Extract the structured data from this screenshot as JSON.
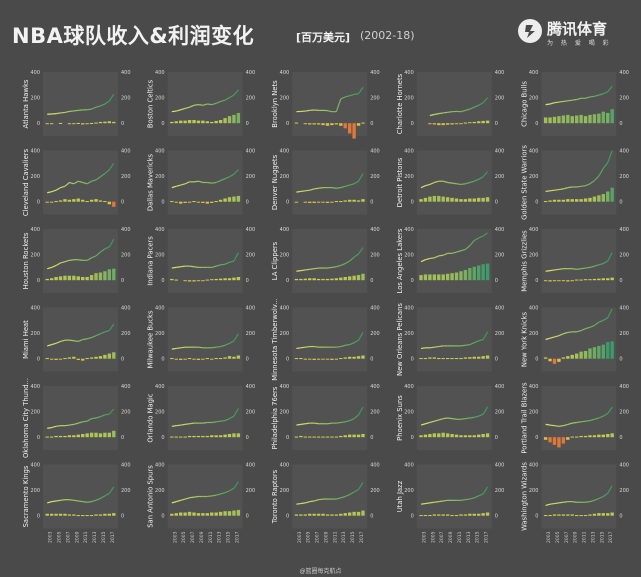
{
  "header": {
    "title": "NBA球队收入&利润变化",
    "unit": "[百万美元]",
    "years": "(2002-18)"
  },
  "logo": {
    "name": "腾讯体育",
    "sub": "为 热 爱 喝 彩"
  },
  "footer": {
    "watermark": "@篮圈每克航点"
  },
  "colors": {
    "background": "#4a4a4a",
    "panel": "#525252",
    "revenue_line_start": "#e8e86a",
    "revenue_line_end": "#3f9a5c",
    "profit_positive_low": "#d9d34f",
    "profit_positive_high": "#3d9a6a",
    "profit_negative": "#e0783a"
  },
  "chart_data": {
    "type": "line+bar small multiples",
    "y_axis": {
      "ylim": [
        -100,
        400
      ],
      "ticks": [
        0,
        200,
        400
      ]
    },
    "x_ticks": [
      "2003",
      "2005",
      "2007",
      "2009",
      "2011",
      "2013",
      "2015",
      "2017"
    ],
    "years": [
      2002,
      2003,
      2004,
      2005,
      2006,
      2007,
      2008,
      2009,
      2010,
      2011,
      2012,
      2013,
      2014,
      2015,
      2016,
      2017
    ],
    "teams": [
      {
        "name": "Atlanta Hawks",
        "revenue": [
          70,
          72,
          75,
          80,
          84,
          92,
          96,
          100,
          104,
          105,
          110,
          125,
          135,
          150,
          175,
          225
        ],
        "profit": [
          -3,
          -2,
          0,
          2,
          0,
          -3,
          -5,
          2,
          -10,
          -8,
          2,
          5,
          10,
          12,
          15,
          10
        ]
      },
      {
        "name": "Boston Celtics",
        "revenue": [
          90,
          95,
          105,
          115,
          125,
          140,
          145,
          140,
          150,
          145,
          155,
          170,
          180,
          200,
          220,
          260
        ],
        "profit": [
          10,
          15,
          20,
          20,
          25,
          25,
          20,
          20,
          15,
          10,
          18,
          25,
          40,
          55,
          65,
          80
        ]
      },
      {
        "name": "Brooklyn Nets",
        "revenue": [
          90,
          92,
          95,
          100,
          103,
          100,
          100,
          98,
          90,
          90,
          190,
          205,
          215,
          225,
          230,
          280
        ],
        "profit": [
          5,
          0,
          -5,
          -10,
          -10,
          -10,
          -15,
          -20,
          -15,
          -10,
          -20,
          -40,
          -80,
          -120,
          -20,
          5
        ]
      },
      {
        "name": "Charlotte Hornets",
        "revenue": [
          0,
          0,
          60,
          68,
          75,
          80,
          85,
          90,
          92,
          90,
          100,
          110,
          125,
          140,
          160,
          200
        ],
        "profit": [
          0,
          0,
          -5,
          -10,
          -15,
          -15,
          -12,
          -10,
          -8,
          -5,
          5,
          8,
          10,
          15,
          18,
          20
        ]
      },
      {
        "name": "Chicago Bulls",
        "revenue": [
          145,
          150,
          160,
          165,
          170,
          175,
          180,
          185,
          195,
          195,
          205,
          210,
          220,
          230,
          245,
          290
        ],
        "profit": [
          45,
          45,
          50,
          55,
          60,
          65,
          55,
          60,
          65,
          55,
          65,
          70,
          75,
          90,
          80,
          110
        ]
      },
      {
        "name": "Cleveland Cavaliers",
        "revenue": [
          70,
          78,
          90,
          110,
          120,
          150,
          140,
          160,
          150,
          140,
          160,
          170,
          195,
          220,
          250,
          300
        ],
        "profit": [
          -5,
          -5,
          5,
          10,
          20,
          15,
          20,
          25,
          15,
          5,
          15,
          20,
          10,
          5,
          -20,
          -40
        ]
      },
      {
        "name": "Dallas Mavericks",
        "revenue": [
          110,
          120,
          130,
          140,
          155,
          155,
          160,
          150,
          150,
          145,
          150,
          165,
          180,
          195,
          215,
          250
        ],
        "profit": [
          5,
          -5,
          -15,
          -10,
          -5,
          5,
          -5,
          -10,
          -15,
          -10,
          5,
          15,
          25,
          35,
          40,
          45
        ]
      },
      {
        "name": "Denver Nuggets",
        "revenue": [
          75,
          80,
          85,
          90,
          100,
          105,
          110,
          110,
          110,
          105,
          110,
          120,
          130,
          140,
          160,
          220
        ],
        "profit": [
          -5,
          0,
          -5,
          -10,
          -10,
          -5,
          -5,
          -10,
          -5,
          5,
          5,
          10,
          15,
          15,
          10,
          20
        ]
      },
      {
        "name": "Detroit Pistons",
        "revenue": [
          110,
          125,
          135,
          150,
          160,
          160,
          150,
          145,
          140,
          135,
          140,
          150,
          160,
          175,
          195,
          235
        ],
        "profit": [
          20,
          30,
          40,
          45,
          45,
          40,
          35,
          30,
          25,
          20,
          20,
          25,
          25,
          30,
          30,
          35
        ]
      },
      {
        "name": "Golden State Warriors",
        "revenue": [
          80,
          85,
          90,
          95,
          100,
          110,
          115,
          115,
          120,
          125,
          140,
          165,
          200,
          260,
          305,
          400
        ],
        "profit": [
          5,
          10,
          15,
          15,
          15,
          20,
          20,
          20,
          20,
          25,
          30,
          40,
          50,
          60,
          80,
          110
        ]
      },
      {
        "name": "Houston Rockets",
        "revenue": [
          90,
          100,
          115,
          135,
          145,
          155,
          160,
          160,
          155,
          155,
          175,
          190,
          220,
          245,
          260,
          320
        ],
        "profit": [
          10,
          15,
          25,
          30,
          35,
          35,
          35,
          30,
          25,
          25,
          40,
          55,
          60,
          70,
          85,
          90
        ]
      },
      {
        "name": "Indiana Pacers",
        "revenue": [
          95,
          100,
          105,
          110,
          110,
          105,
          100,
          100,
          100,
          100,
          110,
          120,
          125,
          140,
          150,
          215
        ],
        "profit": [
          10,
          5,
          0,
          -5,
          -10,
          -10,
          -5,
          -5,
          5,
          8,
          10,
          12,
          15,
          15,
          20,
          25
        ]
      },
      {
        "name": "LA Clippers",
        "revenue": [
          70,
          75,
          80,
          85,
          90,
          95,
          95,
          95,
          100,
          105,
          115,
          130,
          150,
          180,
          205,
          255
        ],
        "profit": [
          10,
          10,
          12,
          15,
          15,
          10,
          10,
          10,
          12,
          15,
          20,
          25,
          30,
          35,
          40,
          50
        ]
      },
      {
        "name": "Los Angeles Lakers",
        "revenue": [
          145,
          160,
          170,
          175,
          190,
          195,
          210,
          210,
          220,
          230,
          240,
          270,
          310,
          330,
          345,
          370
        ],
        "profit": [
          40,
          45,
          45,
          45,
          45,
          45,
          50,
          55,
          60,
          70,
          80,
          95,
          105,
          115,
          125,
          130
        ]
      },
      {
        "name": "Memphis Grizzlies",
        "revenue": [
          70,
          75,
          80,
          85,
          90,
          90,
          90,
          85,
          90,
          95,
          100,
          110,
          120,
          130,
          150,
          215
        ],
        "profit": [
          -5,
          -10,
          -8,
          -5,
          -5,
          -10,
          -8,
          5,
          5,
          8,
          8,
          10,
          12,
          15,
          15,
          20
        ]
      },
      {
        "name": "Miami Heat",
        "revenue": [
          100,
          110,
          120,
          135,
          145,
          145,
          140,
          135,
          150,
          155,
          165,
          180,
          195,
          210,
          220,
          270
        ],
        "profit": [
          5,
          -5,
          -10,
          -5,
          5,
          10,
          15,
          -10,
          -15,
          5,
          10,
          15,
          20,
          30,
          40,
          50
        ]
      },
      {
        "name": "Milwaukee Bucks",
        "revenue": [
          75,
          80,
          85,
          90,
          90,
          90,
          90,
          85,
          85,
          85,
          90,
          95,
          105,
          120,
          140,
          195
        ],
        "profit": [
          5,
          -5,
          -10,
          -5,
          5,
          -5,
          -10,
          -5,
          5,
          -5,
          5,
          5,
          10,
          20,
          15,
          25
        ]
      },
      {
        "name": "Minnesota Timberwolv...",
        "revenue": [
          80,
          85,
          90,
          95,
          95,
          90,
          90,
          90,
          90,
          90,
          95,
          105,
          110,
          125,
          145,
          205
        ],
        "profit": [
          5,
          5,
          -5,
          -5,
          -10,
          -8,
          -5,
          -5,
          -10,
          -5,
          5,
          10,
          15,
          15,
          20,
          25
        ]
      },
      {
        "name": "New Orleans Pelicans",
        "revenue": [
          80,
          85,
          85,
          90,
          95,
          100,
          100,
          100,
          100,
          100,
          105,
          110,
          125,
          140,
          150,
          210
        ],
        "profit": [
          5,
          5,
          10,
          10,
          5,
          5,
          5,
          5,
          5,
          5,
          10,
          12,
          15,
          15,
          20,
          25
        ]
      },
      {
        "name": "New York Knicks",
        "revenue": [
          150,
          160,
          170,
          180,
          195,
          205,
          210,
          210,
          220,
          235,
          245,
          260,
          285,
          300,
          320,
          390
        ],
        "profit": [
          10,
          -20,
          -40,
          -25,
          10,
          20,
          30,
          40,
          55,
          60,
          80,
          90,
          100,
          110,
          130,
          135
        ]
      },
      {
        "name": "Oklahoma City Thund...",
        "revenue": [
          70,
          75,
          85,
          90,
          90,
          95,
          100,
          110,
          120,
          125,
          145,
          150,
          160,
          175,
          180,
          220
        ],
        "profit": [
          5,
          5,
          10,
          10,
          10,
          15,
          15,
          20,
          25,
          30,
          35,
          35,
          30,
          35,
          35,
          50
        ]
      },
      {
        "name": "Orlando Magic",
        "revenue": [
          85,
          90,
          95,
          100,
          105,
          110,
          110,
          110,
          115,
          115,
          120,
          125,
          130,
          145,
          165,
          225
        ],
        "profit": [
          5,
          5,
          5,
          5,
          10,
          10,
          10,
          10,
          10,
          15,
          15,
          15,
          20,
          25,
          30,
          30
        ]
      },
      {
        "name": "Philadelphia 76ers",
        "revenue": [
          95,
          100,
          105,
          110,
          110,
          105,
          105,
          105,
          110,
          110,
          115,
          120,
          130,
          145,
          175,
          235
        ],
        "profit": [
          5,
          10,
          5,
          5,
          5,
          5,
          5,
          5,
          5,
          5,
          10,
          15,
          20,
          20,
          20,
          25
        ]
      },
      {
        "name": "Phoenix Suns",
        "revenue": [
          95,
          105,
          115,
          125,
          135,
          145,
          150,
          145,
          140,
          140,
          145,
          150,
          155,
          165,
          180,
          235
        ],
        "profit": [
          15,
          20,
          25,
          30,
          30,
          35,
          30,
          25,
          20,
          15,
          15,
          15,
          15,
          20,
          25,
          30
        ]
      },
      {
        "name": "Portland Trail Blazers",
        "revenue": [
          100,
          95,
          90,
          85,
          90,
          100,
          110,
          115,
          120,
          125,
          130,
          140,
          150,
          165,
          185,
          235
        ],
        "profit": [
          -20,
          -40,
          -60,
          -80,
          -50,
          -20,
          5,
          5,
          10,
          10,
          15,
          15,
          20,
          20,
          25,
          30
        ]
      },
      {
        "name": "Sacramento Kings",
        "revenue": [
          100,
          110,
          115,
          120,
          125,
          125,
          120,
          115,
          110,
          105,
          110,
          120,
          135,
          155,
          175,
          225
        ],
        "profit": [
          15,
          15,
          15,
          15,
          15,
          10,
          10,
          5,
          5,
          5,
          5,
          10,
          10,
          15,
          15,
          20
        ]
      },
      {
        "name": "San Antonio Spurs",
        "revenue": [
          100,
          110,
          120,
          130,
          140,
          145,
          150,
          150,
          150,
          155,
          160,
          170,
          180,
          195,
          215,
          265
        ],
        "profit": [
          15,
          20,
          25,
          25,
          30,
          25,
          20,
          20,
          20,
          25,
          25,
          30,
          35,
          35,
          40,
          45
        ]
      },
      {
        "name": "Toronto Raptors",
        "revenue": [
          90,
          95,
          100,
          110,
          115,
          125,
          130,
          130,
          130,
          130,
          140,
          150,
          165,
          185,
          205,
          260
        ],
        "profit": [
          10,
          10,
          10,
          15,
          15,
          15,
          15,
          10,
          10,
          10,
          15,
          20,
          25,
          30,
          30,
          40
        ]
      },
      {
        "name": "Utah Jazz",
        "revenue": [
          90,
          95,
          100,
          105,
          110,
          115,
          120,
          120,
          120,
          120,
          125,
          130,
          140,
          155,
          170,
          225
        ],
        "profit": [
          5,
          5,
          5,
          10,
          10,
          10,
          10,
          5,
          5,
          10,
          10,
          15,
          15,
          15,
          20,
          25
        ]
      },
      {
        "name": "Washington Wizards",
        "revenue": [
          80,
          90,
          95,
          100,
          105,
          110,
          110,
          105,
          105,
          105,
          110,
          120,
          135,
          150,
          175,
          235
        ],
        "profit": [
          5,
          5,
          10,
          10,
          10,
          10,
          10,
          5,
          5,
          5,
          10,
          15,
          20,
          20,
          20,
          25
        ]
      }
    ]
  }
}
